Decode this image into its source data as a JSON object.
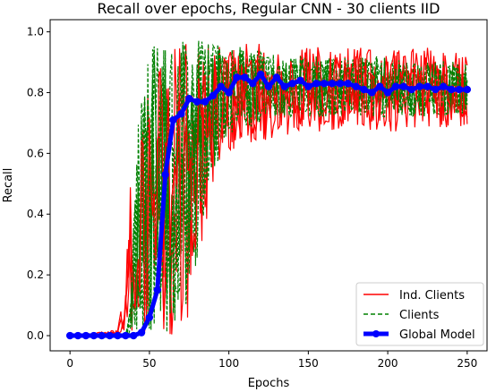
{
  "chart_data": {
    "type": "line",
    "title": "Recall over epochs, Regular CNN - 30 clients IID",
    "xlabel": "Epochs",
    "ylabel": "Recall",
    "xlim": [
      -12.5,
      262.5
    ],
    "ylim": [
      -0.05,
      1.04
    ],
    "xticks": [
      "0",
      "50",
      "100",
      "150",
      "200",
      "250"
    ],
    "xtick_values": [
      0,
      50,
      100,
      150,
      200,
      250
    ],
    "yticks": [
      "0.0",
      "0.2",
      "0.4",
      "0.6",
      "0.8",
      "1.0"
    ],
    "ytick_values": [
      0.0,
      0.2,
      0.4,
      0.6,
      0.8,
      1.0
    ],
    "grid": false,
    "legend_position": "lower-right",
    "legend": [
      "Ind. Clients",
      "Clients",
      "Global Model"
    ],
    "colors": {
      "ind_clients": "#ff0000",
      "clients": "#008000",
      "global": "#0000ff"
    },
    "series": [
      {
        "name": "Ind. Clients",
        "style": "solid",
        "envelope": {
          "x": [
            0,
            30,
            35,
            38,
            41,
            45,
            50,
            55,
            60,
            65,
            70,
            75,
            80,
            85,
            90,
            95,
            100,
            110,
            120,
            130,
            140,
            150,
            175,
            200,
            225,
            250
          ],
          "low": [
            0,
            0,
            0,
            0,
            0,
            0,
            0,
            0,
            0,
            0,
            0,
            0.05,
            0.2,
            0.35,
            0.48,
            0.55,
            0.6,
            0.63,
            0.64,
            0.65,
            0.66,
            0.67,
            0.67,
            0.67,
            0.68,
            0.69
          ],
          "high": [
            0,
            0.02,
            0.18,
            0.52,
            0.1,
            0.7,
            0.84,
            0.92,
            0.95,
            0.96,
            0.97,
            0.98,
            0.97,
            0.96,
            0.96,
            0.95,
            0.96,
            0.97,
            0.96,
            0.95,
            0.95,
            0.95,
            0.95,
            0.95,
            0.95,
            0.94
          ]
        }
      },
      {
        "name": "Clients",
        "style": "dashed",
        "envelope": {
          "x": [
            0,
            35,
            38,
            40,
            43,
            45,
            50,
            55,
            60,
            65,
            70,
            75,
            80,
            85,
            90,
            95,
            100,
            110,
            120,
            130,
            140,
            150,
            175,
            200,
            225,
            250
          ],
          "low": [
            0,
            0,
            0,
            0,
            0,
            0,
            0,
            0,
            0,
            0,
            0.02,
            0.1,
            0.25,
            0.4,
            0.52,
            0.6,
            0.66,
            0.68,
            0.7,
            0.71,
            0.72,
            0.72,
            0.72,
            0.72,
            0.72,
            0.73
          ],
          "high": [
            0,
            0,
            0.1,
            0.4,
            0.75,
            0.82,
            0.93,
            0.97,
            0.99,
            0.98,
            0.99,
            0.98,
            0.98,
            0.97,
            0.96,
            0.96,
            0.95,
            0.95,
            0.94,
            0.93,
            0.92,
            0.92,
            0.92,
            0.92,
            0.91,
            0.9
          ]
        }
      },
      {
        "name": "Global Model",
        "style": "solid-markers",
        "x": [
          0,
          5,
          10,
          15,
          20,
          25,
          30,
          35,
          40,
          45,
          50,
          55,
          60,
          65,
          70,
          75,
          80,
          85,
          90,
          95,
          100,
          105,
          110,
          115,
          120,
          125,
          130,
          135,
          140,
          145,
          150,
          155,
          160,
          165,
          170,
          175,
          180,
          185,
          190,
          195,
          200,
          205,
          210,
          215,
          220,
          225,
          230,
          235,
          240,
          245,
          250
        ],
        "values": [
          0.0,
          0.0,
          0.0,
          0.0,
          0.0,
          0.0,
          0.0,
          0.0,
          0.0,
          0.01,
          0.06,
          0.15,
          0.53,
          0.71,
          0.73,
          0.78,
          0.77,
          0.77,
          0.79,
          0.82,
          0.8,
          0.85,
          0.85,
          0.83,
          0.86,
          0.82,
          0.85,
          0.82,
          0.83,
          0.84,
          0.82,
          0.83,
          0.83,
          0.83,
          0.83,
          0.83,
          0.82,
          0.81,
          0.8,
          0.82,
          0.8,
          0.82,
          0.82,
          0.81,
          0.82,
          0.82,
          0.81,
          0.82,
          0.81,
          0.81,
          0.81
        ]
      }
    ]
  }
}
